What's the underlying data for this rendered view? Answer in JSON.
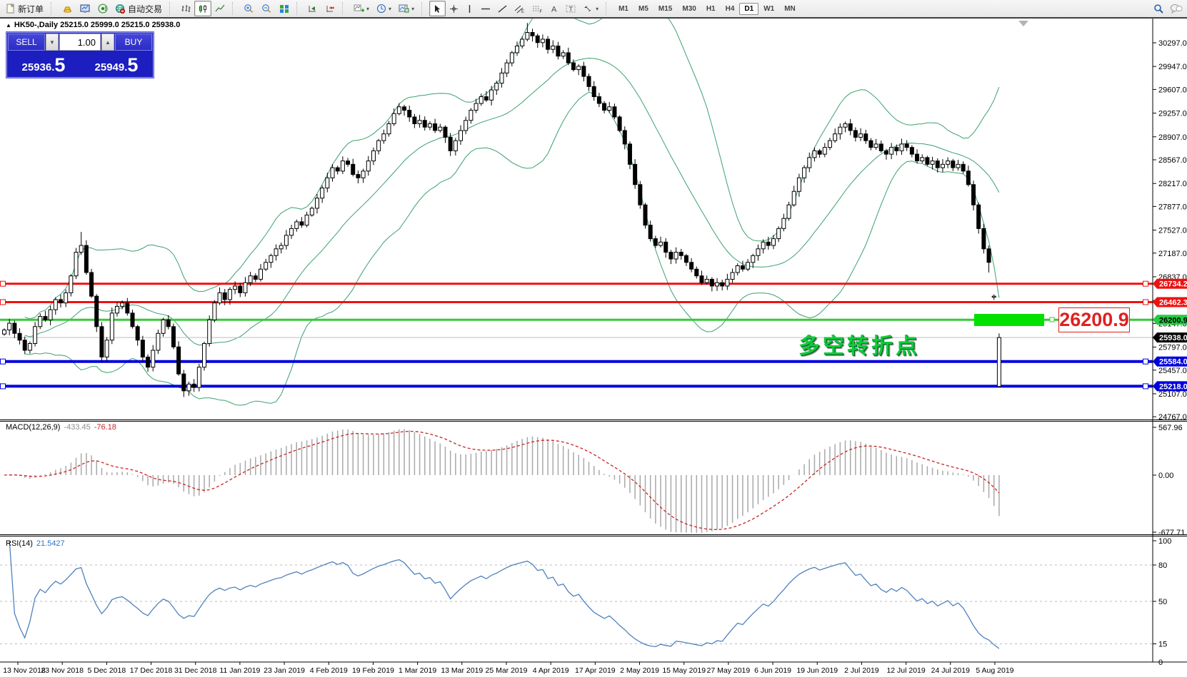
{
  "toolbar": {
    "new_order": "新订单",
    "auto_trading": "自动交易",
    "timeframes": [
      "M1",
      "M5",
      "M15",
      "M30",
      "H1",
      "H4",
      "D1",
      "W1",
      "MN"
    ],
    "active_timeframe": "D1"
  },
  "trade_panel": {
    "sell_label": "SELL",
    "buy_label": "BUY",
    "volume": "1.00",
    "spin_down": "▼",
    "spin_up": "▲",
    "sell_price": {
      "main": "25936.",
      "pips": "5"
    },
    "buy_price": {
      "main": "25949.",
      "pips": "5"
    }
  },
  "chart_header": {
    "collapse_arrow": "▲",
    "text": "HK50-,Daily  25215.0 25999.0 25215.0 25938.0"
  },
  "annotations": {
    "turning_point": "多空转折点",
    "level_label": "26200.9"
  },
  "macd_label": {
    "name": "MACD(12,26,9)",
    "main": "-433.45",
    "signal": "-76.18"
  },
  "rsi_label": {
    "name": "RSI(14)",
    "value": "21.5427"
  },
  "chart_data": {
    "type": "candlestick",
    "symbol": "HK50-",
    "period": "Daily",
    "current_bar": {
      "open": 25215.0,
      "high": 25999.0,
      "low": 25215.0,
      "close": 25938.0
    },
    "ylim": [
      24767,
      30297
    ],
    "price_ticks": [
      30297,
      29947,
      29607,
      29257,
      28907,
      28567,
      28217,
      27877,
      27527,
      27187,
      26837,
      26487,
      26147,
      25797,
      25457,
      25107,
      24767
    ],
    "closes": [
      26050,
      26150,
      26000,
      25900,
      25750,
      25850,
      26100,
      26250,
      26200,
      26350,
      26500,
      26450,
      26600,
      26850,
      27200,
      27300,
      26900,
      26550,
      26100,
      25650,
      25900,
      26300,
      26400,
      26450,
      26300,
      26100,
      25900,
      25650,
      25500,
      25750,
      26000,
      26200,
      26100,
      25800,
      25400,
      25150,
      25250,
      25200,
      25500,
      25850,
      26200,
      26450,
      26600,
      26500,
      26650,
      26700,
      26600,
      26750,
      26850,
      26800,
      26950,
      27050,
      27150,
      27250,
      27300,
      27450,
      27550,
      27650,
      27600,
      27750,
      27850,
      28000,
      28150,
      28300,
      28450,
      28400,
      28550,
      28500,
      28350,
      28300,
      28400,
      28550,
      28700,
      28850,
      28950,
      29100,
      29250,
      29350,
      29300,
      29200,
      29100,
      29150,
      29050,
      29100,
      29000,
      29050,
      28900,
      28700,
      28850,
      29000,
      29150,
      29300,
      29400,
      29500,
      29450,
      29600,
      29700,
      29850,
      30000,
      30150,
      30250,
      30350,
      30450,
      30400,
      30300,
      30350,
      30200,
      30250,
      30100,
      30150,
      30000,
      29900,
      29950,
      29800,
      29650,
      29500,
      29400,
      29300,
      29350,
      29200,
      29000,
      28800,
      28500,
      28200,
      27900,
      27600,
      27400,
      27300,
      27350,
      27200,
      27100,
      27200,
      27150,
      27050,
      26950,
      26850,
      26750,
      26800,
      26700,
      26750,
      26700,
      26800,
      26900,
      27000,
      26950,
      27050,
      27150,
      27250,
      27350,
      27300,
      27400,
      27550,
      27700,
      27900,
      28100,
      28300,
      28450,
      28600,
      28700,
      28650,
      28750,
      28850,
      28950,
      29050,
      29100,
      29000,
      28900,
      28950,
      28850,
      28750,
      28800,
      28700,
      28650,
      28750,
      28700,
      28800,
      28750,
      28650,
      28550,
      28600,
      28500,
      28550,
      28450,
      28500,
      28550,
      28450,
      28500,
      28400,
      28200,
      27900,
      27550,
      27250,
      27050,
      26550,
      25938
    ],
    "candle_overrides": {
      "15": {
        "high": 27500
      },
      "35": {
        "low": 25060
      },
      "102": {
        "high": 30590
      },
      "192": {
        "low": 26900
      },
      "193": {
        "open": 26550
      },
      "194": {
        "open": 25215,
        "high": 25999,
        "low": 25215,
        "close": 25938
      }
    },
    "bollinger": {
      "period": 20,
      "deviation": 2,
      "color": "#3da06e"
    },
    "hlines": [
      {
        "price": 26734.2,
        "label": "26734.2",
        "color": "#ee1111",
        "width": 3,
        "badge_bg": "#ee1111",
        "badge_fg": "#ffffff",
        "anchors": true
      },
      {
        "price": 26462.3,
        "label": "26462.3",
        "color": "#ee1111",
        "width": 3,
        "badge_bg": "#ee1111",
        "badge_fg": "#ffffff",
        "anchors": true
      },
      {
        "price": 26200.9,
        "label": "26200.9",
        "color": "#35cc35",
        "width": 3,
        "badge_bg": "#22cc44",
        "badge_fg": "#000000",
        "anchors": false
      },
      {
        "price": 25938.0,
        "label": "25938.0",
        "color": "#bdbdbd",
        "width": 1,
        "badge_bg": "#000000",
        "badge_fg": "#ffffff",
        "anchors": false
      },
      {
        "price": 25584.0,
        "label": "25584.0",
        "color": "#0000dd",
        "width": 4,
        "badge_bg": "#0000dd",
        "badge_fg": "#ffffff",
        "anchors": true
      },
      {
        "price": 25218.0,
        "label": "25218.0",
        "color": "#0000dd",
        "width": 4,
        "badge_bg": "#0000dd",
        "badge_fg": "#ffffff",
        "anchors": true
      }
    ],
    "green_box": {
      "x": 1364,
      "y": 440,
      "w": 98,
      "h": 17,
      "color": "#00e100"
    },
    "macd": {
      "fast": 12,
      "slow": 26,
      "signal": 9,
      "axis_max": "567.96",
      "axis_zero": "0.00",
      "axis_min": "-677.71",
      "hist_color": "#a9a9a9",
      "signal_color": "#cc2222"
    },
    "rsi": {
      "period": 14,
      "levels": [
        80,
        50,
        15
      ],
      "axis_top": "100",
      "axis_bottom": "0",
      "line_color": "#4f81bd"
    },
    "dates": [
      "13 Nov 2018",
      "23 Nov 2018",
      "5 Dec 2018",
      "17 Dec 2018",
      "31 Dec 2018",
      "11 Jan 2019",
      "23 Jan 2019",
      "4 Feb 2019",
      "19 Feb 2019",
      "1 Mar 2019",
      "13 Mar 2019",
      "25 Mar 2019",
      "4 Apr 2019",
      "17 Apr 2019",
      "2 May 2019",
      "15 May 2019",
      "27 May 2019",
      "6 Jun 2019",
      "19 Jun 2019",
      "2 Jul 2019",
      "12 Jul 2019",
      "24 Jul 2019",
      "5 Aug 2019"
    ]
  }
}
